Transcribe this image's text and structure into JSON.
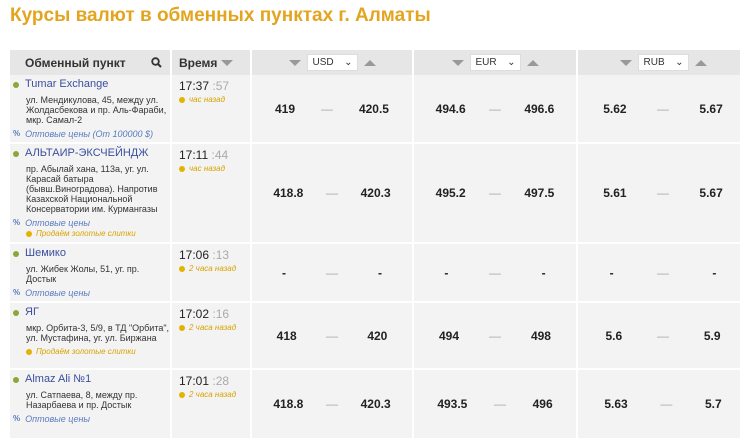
{
  "title": "Курсы валют в обменных пунктах г. Алматы",
  "header": {
    "name": "Обменный пункт",
    "time": "Время",
    "currencies": [
      "USD",
      "EUR",
      "RUB"
    ]
  },
  "rows": [
    {
      "name": "Tumar Exchange",
      "address": "ул. Мендикулова, 45, между ул. Жолдасбекова и пр. Аль-Фараби, мкр. Самал-2",
      "wholesale": "Оптовые цены (От 100000 $)",
      "gold": "",
      "time": "17:37",
      "sec": ":57",
      "ago": "час назад",
      "rates": [
        [
          "419",
          "420.5"
        ],
        [
          "494.6",
          "496.6"
        ],
        [
          "5.62",
          "5.67"
        ]
      ]
    },
    {
      "name": "АЛЬТАИР-ЭКСЧЕЙНДЖ",
      "address": "пр. Абылай хана, 113а, уг. ул. Карасай батыра (бывш.Виноградова). Напротив Казахской Национальной Консерватории им. Курмангазы",
      "wholesale": "Оптовые цены",
      "gold": "Продаём золотые слитки",
      "time": "17:11",
      "sec": ":44",
      "ago": "час назад",
      "rates": [
        [
          "418.8",
          "420.3"
        ],
        [
          "495.2",
          "497.5"
        ],
        [
          "5.61",
          "5.67"
        ]
      ]
    },
    {
      "name": "Шемико",
      "address": "ул. Жибек Жолы, 51, уг. пр. Достык",
      "wholesale": "Оптовые цены",
      "gold": "",
      "time": "17:06",
      "sec": ":13",
      "ago": "2 часа назад",
      "rates": [
        [
          "-",
          "-"
        ],
        [
          "-",
          "-"
        ],
        [
          "-",
          "-"
        ]
      ]
    },
    {
      "name": "ЯГ",
      "address": "мкр. Орбита-3, 5/9, в ТД \"Орбита\", ул. Мустафина, уг. ул. Биржана",
      "wholesale": "",
      "gold": "Продаём золотые слитки",
      "time": "17:02",
      "sec": ":16",
      "ago": "2 часа назад",
      "rates": [
        [
          "418",
          "420"
        ],
        [
          "494",
          "498"
        ],
        [
          "5.6",
          "5.9"
        ]
      ]
    },
    {
      "name": "Almaz Ali №1",
      "address": "ул. Сатпаева, 8, между пр. Назарбаева и пр. Достык",
      "wholesale": "Оптовые цены",
      "gold": "",
      "time": "17:01",
      "sec": ":28",
      "ago": "2 часа назад",
      "rates": [
        [
          "418.8",
          "420.3"
        ],
        [
          "493.5",
          "496"
        ],
        [
          "5.63",
          "5.7"
        ]
      ]
    }
  ],
  "dash": "—",
  "pct": "%"
}
